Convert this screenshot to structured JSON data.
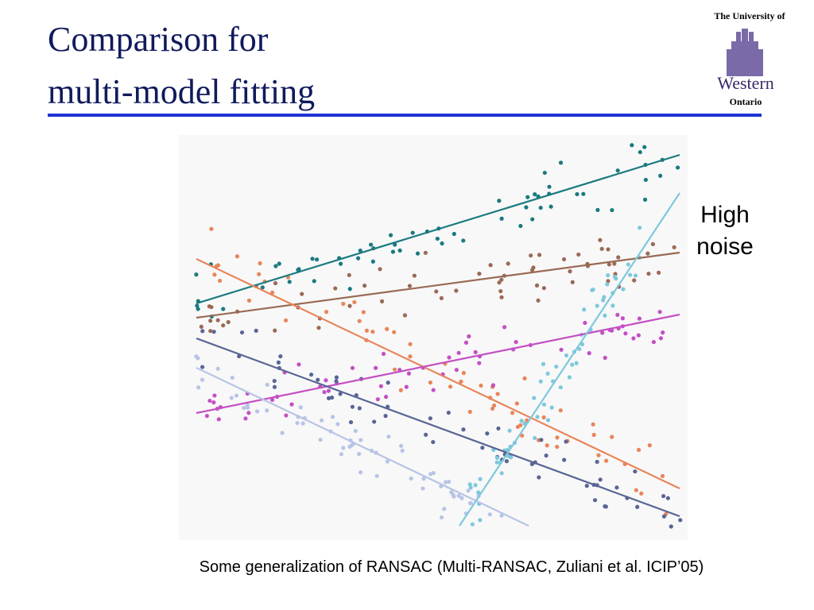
{
  "header": {
    "title_lines": [
      "Comparison for",
      "multi-model fitting"
    ],
    "logo": {
      "top": "The University of",
      "name": "Western",
      "bottom": "Ontario"
    }
  },
  "annotation": {
    "lines": [
      "High",
      "noise"
    ]
  },
  "caption": "Some generalization of RANSAC  (Multi-RANSAC, Zuliani et al. ICIP’05)"
}
